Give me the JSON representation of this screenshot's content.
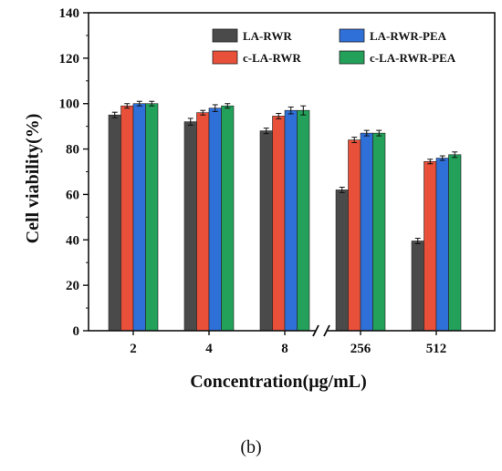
{
  "chart_data": {
    "type": "bar",
    "title": "",
    "xlabel": "Concentration(μg/mL)",
    "ylabel": "Cell viability(%)",
    "ylim": [
      0,
      140
    ],
    "yticks": [
      0,
      20,
      40,
      60,
      80,
      100,
      120,
      140
    ],
    "categories": [
      "2",
      "4",
      "8",
      "256",
      "512"
    ],
    "axis_break": "between 8 and 256",
    "legend_position": "top-right",
    "panel_label": "(b)",
    "series": [
      {
        "name": "LA-RWR",
        "color": "#4a4a4a",
        "values": [
          95,
          92,
          88,
          62,
          39.5
        ],
        "errors": [
          1.2,
          1.5,
          1.2,
          1.2,
          1.2
        ]
      },
      {
        "name": "c-LA-RWR",
        "color": "#e8503a",
        "values": [
          99,
          96,
          94.5,
          84,
          74.5
        ],
        "errors": [
          1.0,
          1.0,
          1.2,
          1.2,
          1.0
        ]
      },
      {
        "name": "LA-RWR-PEA",
        "color": "#2f6fd8",
        "values": [
          100,
          98,
          97,
          87,
          76
        ],
        "errors": [
          1.0,
          1.5,
          1.5,
          1.2,
          1.0
        ]
      },
      {
        "name": "c-LA-RWR-PEA",
        "color": "#23a05a",
        "values": [
          100,
          99,
          97,
          87,
          77.5
        ],
        "errors": [
          1.0,
          1.0,
          2.0,
          1.2,
          1.2
        ]
      }
    ]
  }
}
